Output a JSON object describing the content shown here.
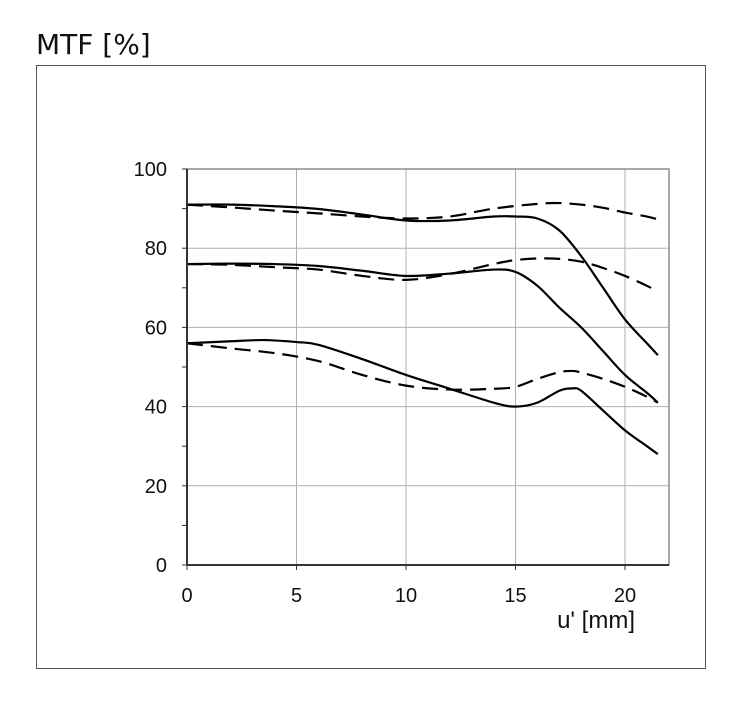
{
  "page": {
    "title": "MTF [%]"
  },
  "chart_data": {
    "type": "line",
    "title": "",
    "ylabel": "MTF [%]",
    "xlabel": "u' [mm]",
    "xlim": [
      0,
      21.6
    ],
    "ylim": [
      0,
      100
    ],
    "xticks": [
      0,
      5,
      10,
      15,
      20
    ],
    "yticks": [
      0,
      20,
      40,
      60,
      80,
      100
    ],
    "grid": true,
    "series": [
      {
        "style": "solid",
        "x": [
          0,
          2,
          4,
          6,
          8,
          10,
          12,
          14,
          15,
          16,
          17,
          18,
          19,
          20,
          21,
          21.5
        ],
        "y": [
          91,
          91,
          90.6,
          89.9,
          88.5,
          87,
          87,
          88,
          88,
          87.5,
          84.5,
          78,
          70,
          62,
          56,
          53
        ]
      },
      {
        "style": "dashed",
        "x": [
          0,
          2,
          4,
          6,
          8,
          10,
          12,
          14,
          16,
          17,
          18,
          19,
          20,
          21,
          21.5
        ],
        "y": [
          91,
          90.3,
          89.5,
          88.8,
          88,
          87.5,
          88,
          90,
          91.2,
          91.4,
          91,
          90.2,
          89,
          88,
          87.3
        ]
      },
      {
        "style": "solid",
        "x": [
          0,
          2,
          4,
          6,
          8,
          10,
          12,
          14,
          15,
          16,
          17,
          18,
          19,
          20,
          21,
          21.5
        ],
        "y": [
          76,
          76.1,
          76,
          75.5,
          74.3,
          73,
          73.6,
          74.6,
          74,
          70.5,
          65,
          60,
          54,
          48,
          43.5,
          41
        ]
      },
      {
        "style": "dashed",
        "x": [
          0,
          2,
          4,
          6,
          8,
          10,
          12,
          14,
          15,
          16,
          17,
          18,
          19,
          20,
          21,
          21.5
        ],
        "y": [
          76,
          75.8,
          75.2,
          74.6,
          73,
          72,
          73.5,
          76,
          77,
          77.4,
          77.3,
          76.6,
          75,
          73,
          70.5,
          69
        ]
      },
      {
        "style": "solid",
        "x": [
          0,
          2,
          3.5,
          5,
          6,
          8,
          10,
          12,
          14,
          15,
          16,
          17,
          17.6,
          18,
          19,
          20,
          21,
          21.5
        ],
        "y": [
          56,
          56.5,
          56.8,
          56.3,
          55.6,
          52,
          48,
          44.5,
          41,
          40,
          41,
          44,
          44.6,
          44,
          39,
          34,
          30,
          28
        ]
      },
      {
        "style": "dashed",
        "x": [
          0,
          2,
          4,
          6,
          8,
          10,
          12,
          14,
          15,
          16,
          17,
          17.6,
          18,
          19,
          20,
          21,
          21.5
        ],
        "y": [
          56,
          54.7,
          53.5,
          51.5,
          48,
          45.3,
          44.3,
          44.5,
          45,
          47,
          48.7,
          49,
          48.6,
          47,
          45,
          42.5,
          41
        ]
      }
    ]
  }
}
